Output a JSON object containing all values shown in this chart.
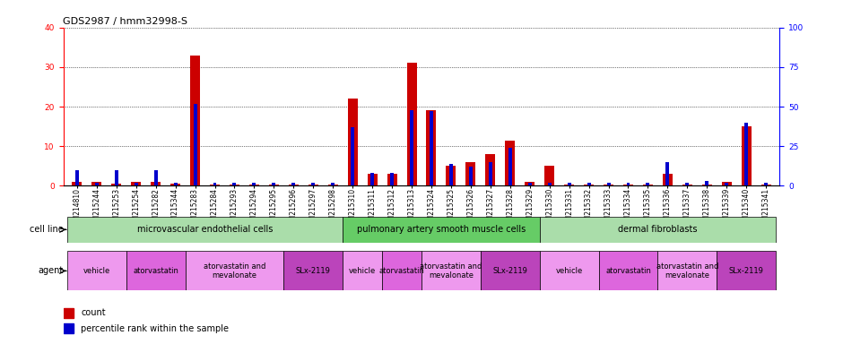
{
  "title": "GDS2987 / hmm32998-S",
  "samples": [
    "GSM214810",
    "GSM215244",
    "GSM215253",
    "GSM215254",
    "GSM215282",
    "GSM215344",
    "GSM215283",
    "GSM215284",
    "GSM215293",
    "GSM215294",
    "GSM215295",
    "GSM215296",
    "GSM215297",
    "GSM215298",
    "GSM215310",
    "GSM215311",
    "GSM215312",
    "GSM215313",
    "GSM215324",
    "GSM215325",
    "GSM215326",
    "GSM215327",
    "GSM215328",
    "GSM215329",
    "GSM215330",
    "GSM215331",
    "GSM215332",
    "GSM215333",
    "GSM215334",
    "GSM215335",
    "GSM215336",
    "GSM215337",
    "GSM215338",
    "GSM215339",
    "GSM215340",
    "GSM215341"
  ],
  "red_values": [
    1,
    1,
    0.5,
    1,
    1,
    0.5,
    33,
    0.2,
    0.2,
    0.2,
    0.2,
    0.2,
    0.2,
    0.2,
    22,
    3,
    3,
    31,
    19,
    5,
    6,
    8,
    11.5,
    1,
    5,
    0.2,
    0.2,
    0.2,
    0.2,
    0.2,
    3,
    0.2,
    0.2,
    1,
    15,
    0.2
  ],
  "blue_values_pct": [
    10,
    2,
    10,
    2,
    10,
    2,
    52,
    2,
    2,
    2,
    2,
    2,
    2,
    2,
    37,
    8,
    8,
    48,
    47,
    14,
    12,
    15,
    24,
    2,
    2,
    2,
    2,
    2,
    2,
    2,
    15,
    2,
    3,
    2,
    40,
    2
  ],
  "cell_line_groups": [
    {
      "label": "microvascular endothelial cells",
      "start": 0,
      "end": 14,
      "color": "#AADDAA"
    },
    {
      "label": "pulmonary artery smooth muscle cells",
      "start": 14,
      "end": 24,
      "color": "#66CC66"
    },
    {
      "label": "dermal fibroblasts",
      "start": 24,
      "end": 36,
      "color": "#AADDAA"
    }
  ],
  "agent_groups": [
    {
      "label": "vehicle",
      "start": 0,
      "end": 3,
      "color": "#EE99EE"
    },
    {
      "label": "atorvastatin",
      "start": 3,
      "end": 6,
      "color": "#DD66DD"
    },
    {
      "label": "atorvastatin and\nmevalonate",
      "start": 6,
      "end": 11,
      "color": "#EE99EE"
    },
    {
      "label": "SLx-2119",
      "start": 11,
      "end": 14,
      "color": "#BB44BB"
    },
    {
      "label": "vehicle",
      "start": 14,
      "end": 16,
      "color": "#EE99EE"
    },
    {
      "label": "atorvastatin",
      "start": 16,
      "end": 18,
      "color": "#DD66DD"
    },
    {
      "label": "atorvastatin and\nmevalonate",
      "start": 18,
      "end": 21,
      "color": "#EE99EE"
    },
    {
      "label": "SLx-2119",
      "start": 21,
      "end": 24,
      "color": "#BB44BB"
    },
    {
      "label": "vehicle",
      "start": 24,
      "end": 27,
      "color": "#EE99EE"
    },
    {
      "label": "atorvastatin",
      "start": 27,
      "end": 30,
      "color": "#DD66DD"
    },
    {
      "label": "atorvastatin and\nmevalonate",
      "start": 30,
      "end": 33,
      "color": "#EE99EE"
    },
    {
      "label": "SLx-2119",
      "start": 33,
      "end": 36,
      "color": "#BB44BB"
    }
  ],
  "ylim_left": [
    0,
    40
  ],
  "ylim_right": [
    0,
    100
  ],
  "yticks_left": [
    0,
    10,
    20,
    30,
    40
  ],
  "yticks_right": [
    0,
    25,
    50,
    75,
    100
  ],
  "bar_color_red": "#CC0000",
  "bar_color_blue": "#0000CC",
  "title_fontsize": 8,
  "tick_fontsize": 5.5,
  "label_fontsize": 7,
  "small_fontsize": 6
}
